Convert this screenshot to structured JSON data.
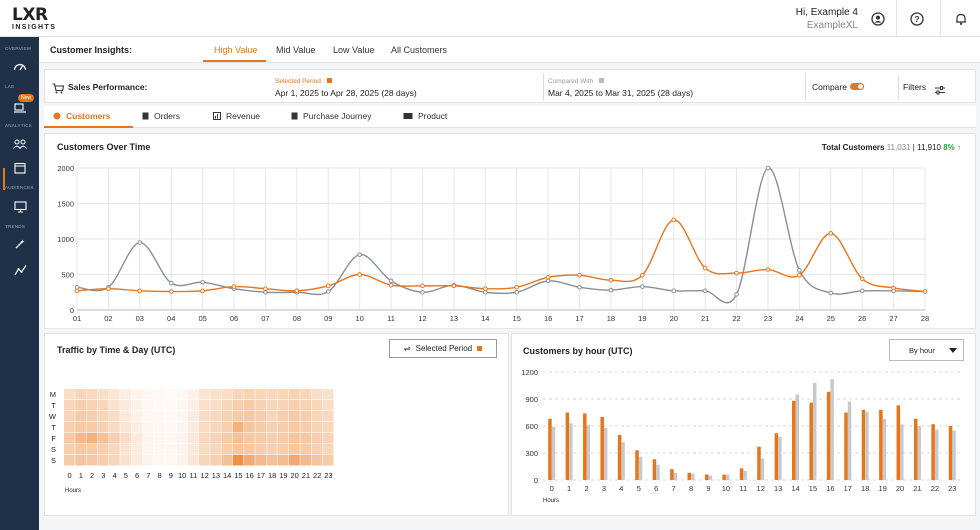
{
  "app": {
    "logo_main": "LXR",
    "logo_sub": "INSIGHTS"
  },
  "header": {
    "greeting": "Hi, Example 4",
    "org": "ExampleXL",
    "icons": [
      "user-circle-icon",
      "help-icon",
      "bell-icon"
    ]
  },
  "sidebar": {
    "sections": [
      "OVERVIEW",
      "LAB",
      "ANALYTICS",
      "AUDIENCES",
      "TRENDS"
    ],
    "new_badge": "New",
    "icons": [
      "speedometer-icon",
      "lab-icon",
      "customers-icon",
      "calendar-icon",
      "monitor-icon",
      "wand-icon",
      "trend-icon"
    ]
  },
  "insights": {
    "label": "Customer Insights:",
    "tabs": [
      "High Value",
      "Mid Value",
      "Low Value",
      "All Customers"
    ],
    "active": "High Value"
  },
  "performance": {
    "title": "Sales Performance:",
    "selected_label": "Selected Period",
    "selected_range": "Apr 1, 2025 to Apr 28, 2025 (28 days)",
    "compared_label": "Compared With",
    "compared_range": "Mar 4, 2025 to Mar 31, 2025 (28 days)",
    "compare_label": "Compare",
    "compare_on": true,
    "filters_label": "Filters"
  },
  "metric_tabs": [
    "Customers",
    "Orders",
    "Revenue",
    "Purchase Journey",
    "Product"
  ],
  "colors": {
    "accent": "#e8751a",
    "compare": "#8a8f96",
    "sidebar": "#1f3049",
    "up": "#2e9e3e"
  },
  "customers_over_time": {
    "title": "Customers Over Time",
    "total_label": "Total Customers",
    "total_previous": "11,031",
    "total_current": "11,910",
    "change": "8%"
  },
  "traffic": {
    "title": "Traffic by Time & Day (UTC)",
    "button_label": "Selected Period",
    "xlabel": "Hours"
  },
  "by_hour": {
    "title": "Customers by hour (UTC)",
    "dropdown_value": "By hour",
    "xlabel": "Hours"
  },
  "chart_data": [
    {
      "type": "line",
      "title": "Customers Over Time",
      "x": [
        "01",
        "02",
        "03",
        "04",
        "05",
        "06",
        "07",
        "08",
        "09",
        "10",
        "11",
        "12",
        "13",
        "14",
        "15",
        "16",
        "17",
        "18",
        "19",
        "20",
        "21",
        "22",
        "23",
        "24",
        "25",
        "26",
        "27",
        "28"
      ],
      "ylim": [
        0,
        2000
      ],
      "yticks": [
        0,
        500,
        1000,
        1500,
        2000
      ],
      "grid": true,
      "series": [
        {
          "values": [
            270,
            300,
            270,
            260,
            270,
            330,
            300,
            270,
            340,
            500,
            350,
            340,
            340,
            300,
            320,
            460,
            490,
            420,
            490,
            1270,
            590,
            520,
            570,
            490,
            1080,
            440,
            310,
            260
          ]
        },
        {
          "values": [
            320,
            320,
            950,
            380,
            390,
            300,
            250,
            250,
            260,
            780,
            410,
            250,
            350,
            250,
            250,
            410,
            320,
            280,
            330,
            270,
            270,
            220,
            2000,
            560,
            240,
            270,
            270,
            260
          ]
        }
      ]
    },
    {
      "type": "heatmap",
      "title": "Traffic by Time & Day (UTC)",
      "y": [
        "M",
        "T",
        "W",
        "T",
        "F",
        "S",
        "S"
      ],
      "x": [
        0,
        1,
        2,
        3,
        4,
        5,
        6,
        7,
        8,
        9,
        10,
        11,
        12,
        13,
        14,
        15,
        16,
        17,
        18,
        19,
        20,
        21,
        22,
        23
      ],
      "values": [
        [
          0.25,
          0.3,
          0.28,
          0.24,
          0.18,
          0.12,
          0.08,
          0.05,
          0.04,
          0.03,
          0.05,
          0.1,
          0.2,
          0.22,
          0.25,
          0.3,
          0.32,
          0.3,
          0.28,
          0.3,
          0.32,
          0.3,
          0.25,
          0.22
        ],
        [
          0.3,
          0.35,
          0.32,
          0.3,
          0.22,
          0.15,
          0.1,
          0.06,
          0.04,
          0.04,
          0.06,
          0.12,
          0.22,
          0.25,
          0.3,
          0.35,
          0.38,
          0.33,
          0.3,
          0.32,
          0.35,
          0.33,
          0.3,
          0.25
        ],
        [
          0.32,
          0.38,
          0.35,
          0.3,
          0.25,
          0.16,
          0.1,
          0.06,
          0.05,
          0.04,
          0.06,
          0.14,
          0.25,
          0.28,
          0.33,
          0.38,
          0.4,
          0.36,
          0.3,
          0.35,
          0.38,
          0.35,
          0.3,
          0.28
        ],
        [
          0.35,
          0.4,
          0.38,
          0.33,
          0.26,
          0.18,
          0.12,
          0.07,
          0.05,
          0.05,
          0.07,
          0.15,
          0.26,
          0.3,
          0.35,
          0.55,
          0.42,
          0.38,
          0.33,
          0.36,
          0.4,
          0.36,
          0.32,
          0.3
        ],
        [
          0.4,
          0.5,
          0.55,
          0.45,
          0.35,
          0.25,
          0.15,
          0.08,
          0.06,
          0.05,
          0.08,
          0.16,
          0.28,
          0.32,
          0.38,
          0.45,
          0.4,
          0.38,
          0.35,
          0.38,
          0.42,
          0.4,
          0.35,
          0.32
        ],
        [
          0.35,
          0.4,
          0.38,
          0.35,
          0.28,
          0.2,
          0.14,
          0.08,
          0.06,
          0.06,
          0.08,
          0.16,
          0.26,
          0.3,
          0.35,
          0.42,
          0.4,
          0.36,
          0.33,
          0.36,
          0.4,
          0.38,
          0.33,
          0.3
        ],
        [
          0.38,
          0.42,
          0.4,
          0.36,
          0.3,
          0.22,
          0.15,
          0.09,
          0.06,
          0.06,
          0.09,
          0.18,
          0.3,
          0.34,
          0.45,
          0.8,
          0.6,
          0.5,
          0.45,
          0.48,
          0.62,
          0.5,
          0.42,
          0.38
        ]
      ]
    },
    {
      "type": "bar",
      "title": "Customers by hour (UTC)",
      "categories": [
        "0",
        "1",
        "2",
        "3",
        "4",
        "5",
        "6",
        "7",
        "8",
        "9",
        "10",
        "11",
        "12",
        "13",
        "14",
        "15",
        "16",
        "17",
        "18",
        "19",
        "20",
        "21",
        "22",
        "23"
      ],
      "ylim": [
        0,
        1200
      ],
      "yticks": [
        0,
        300,
        600,
        900,
        1200
      ],
      "series": [
        {
          "values": [
            680,
            750,
            740,
            700,
            500,
            330,
            230,
            120,
            80,
            60,
            60,
            130,
            370,
            520,
            880,
            860,
            980,
            750,
            780,
            780,
            830,
            680,
            620,
            600
          ]
        },
        {
          "values": [
            590,
            630,
            610,
            580,
            420,
            260,
            170,
            80,
            70,
            50,
            60,
            100,
            240,
            480,
            950,
            1080,
            1120,
            870,
            760,
            680,
            620,
            600,
            560,
            550
          ]
        }
      ]
    }
  ]
}
